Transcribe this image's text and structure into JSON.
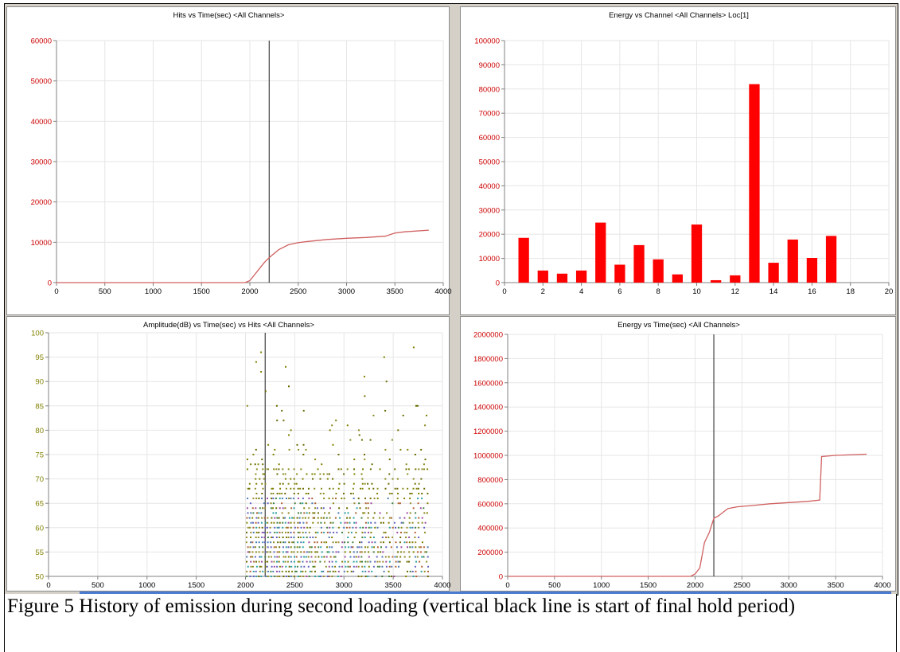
{
  "caption": "Figure 5  History of emission during second loading (vertical black line is start of final hold period)",
  "colors": {
    "panel_bg": "#d4d0c8",
    "hits_tick": "#cc0000",
    "energy_tick": "#cc0000",
    "amp_tick": "#808000",
    "curve": "#d06060",
    "bar": "#ff0000",
    "marker_line": "#404040"
  },
  "chart_data": [
    {
      "id": "hits",
      "type": "line",
      "title": "Hits vs Time(sec) <All Channels>",
      "xlim": [
        0,
        4000
      ],
      "ylim": [
        0,
        60000
      ],
      "xticks": [
        0,
        500,
        1000,
        1500,
        2000,
        2500,
        3000,
        3500,
        4000
      ],
      "yticks": [
        0,
        10000,
        20000,
        30000,
        40000,
        50000,
        60000
      ],
      "vline_x": 2200,
      "x": [
        0,
        1950,
        2000,
        2050,
        2100,
        2150,
        2200,
        2250,
        2300,
        2400,
        2500,
        2600,
        2800,
        3000,
        3200,
        3400,
        3500,
        3600,
        3850
      ],
      "y": [
        0,
        0,
        500,
        2000,
        3500,
        5000,
        6200,
        7200,
        8200,
        9400,
        9900,
        10200,
        10700,
        11000,
        11200,
        11500,
        12300,
        12600,
        13000
      ],
      "grid": true
    },
    {
      "id": "energy-channel",
      "type": "bar",
      "title": "Energy vs Channel <All Channels> Loc[1]",
      "xlim": [
        0,
        20
      ],
      "ylim": [
        0,
        100000
      ],
      "xticks": [
        0,
        2,
        4,
        6,
        8,
        10,
        12,
        14,
        16,
        18,
        20
      ],
      "yticks": [
        0,
        10000,
        20000,
        30000,
        40000,
        50000,
        60000,
        70000,
        80000,
        90000,
        100000
      ],
      "categories": [
        1,
        2,
        3,
        4,
        5,
        6,
        7,
        8,
        9,
        10,
        11,
        12,
        13,
        14,
        15,
        16,
        17
      ],
      "values": [
        18500,
        5000,
        3700,
        5000,
        24800,
        7400,
        15500,
        9600,
        3400,
        24000,
        1000,
        3000,
        82000,
        8200,
        17800,
        10200,
        19300
      ],
      "grid": true
    },
    {
      "id": "amplitude",
      "type": "scatter",
      "title": "Amplitude(dB) vs Time(sec) vs Hits <All Channels>",
      "xlim": [
        0,
        4000
      ],
      "ylim": [
        50,
        100
      ],
      "xticks": [
        0,
        500,
        1000,
        1500,
        2000,
        2500,
        3000,
        3500,
        4000
      ],
      "yticks": [
        50,
        55,
        60,
        65,
        70,
        75,
        80,
        85,
        90,
        95,
        100
      ],
      "vline_x": 2200,
      "x_range_of_points": [
        2000,
        3830
      ],
      "notable_points": [
        [
          2150,
          96
        ],
        [
          2100,
          94
        ],
        [
          2150,
          92
        ],
        [
          2400,
          93
        ],
        [
          3700,
          97
        ],
        [
          3400,
          95
        ],
        [
          3200,
          91
        ],
        [
          3830,
          83
        ]
      ],
      "grid": true
    },
    {
      "id": "energy-time",
      "type": "line",
      "title": "Energy vs Time(sec) <All Channels>",
      "xlim": [
        0,
        4000
      ],
      "ylim": [
        0,
        2000000
      ],
      "xticks": [
        0,
        500,
        1000,
        1500,
        2000,
        2500,
        3000,
        3500,
        4000
      ],
      "yticks": [
        0,
        200000,
        400000,
        600000,
        800000,
        1000000,
        1200000,
        1400000,
        1600000,
        1800000,
        2000000
      ],
      "vline_x": 2200,
      "x": [
        0,
        1950,
        2000,
        2050,
        2100,
        2150,
        2200,
        2250,
        2300,
        2350,
        2450,
        2600,
        2800,
        3000,
        3200,
        3330,
        3350,
        3500,
        3830
      ],
      "y": [
        0,
        0,
        20000,
        70000,
        280000,
        360000,
        480000,
        500000,
        530000,
        560000,
        575000,
        585000,
        600000,
        610000,
        620000,
        630000,
        990000,
        1000000,
        1010000
      ],
      "grid": true
    }
  ]
}
